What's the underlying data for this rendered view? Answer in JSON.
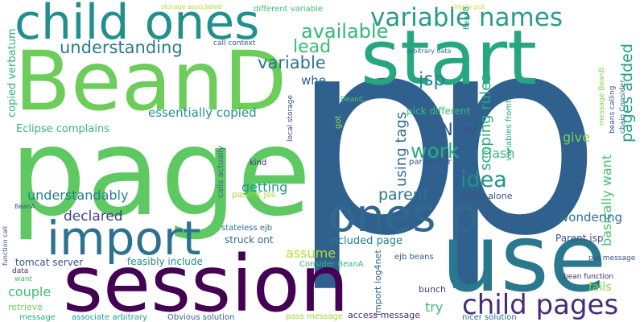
{
  "words": [
    "p",
    "p",
    "page",
    "BeanD",
    "start",
    "session",
    "use",
    "child ones",
    "import",
    "ones p",
    "child pages",
    "variable names",
    "available",
    "lead",
    "understanding",
    "variable",
    "whe",
    "jsp",
    "pages added",
    "scoping rules",
    "using tags",
    "Now",
    "work",
    "idea",
    "clash",
    "give",
    "basically want",
    "parent",
    "essentially copied",
    "Eclipse complains",
    "copied verbatum",
    "understandably",
    "declared",
    "getting",
    "wondering",
    "assume",
    "included page",
    "struck ont",
    "stateless ejb",
    "parent jss",
    "Parent jsp",
    "feasibly include",
    "tomcat server",
    "couple",
    "retrieve",
    "message",
    "associate arbitrary",
    "Obvious solution",
    "pass message",
    "access message",
    "try",
    "nicer solution",
    "bunch",
    "fails",
    "import log4net",
    "ejb beans",
    "Consider BeanA",
    "put message",
    "bean function",
    "stand alone",
    "parameter",
    "kind",
    "calls actually",
    "local storage",
    "got",
    "BeanC",
    "pick different",
    "variables fromt",
    "message BeanB",
    "chain Consider",
    "beans calling",
    "arbitrary data",
    "simply put",
    "storage associated",
    "different variable",
    "BeanB",
    "call context",
    "function call",
    "BeanA",
    "data",
    "want"
  ]
}
